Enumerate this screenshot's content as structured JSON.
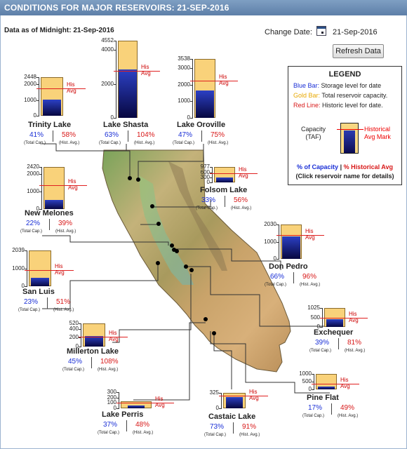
{
  "header": {
    "title": "CONDITIONS FOR MAJOR RESERVOIRS: 21-SEP-2016"
  },
  "as_of": "Data as of Midnight: 21-Sep-2016",
  "change_date": {
    "label": "Change Date:",
    "value": "21-Sep-2016",
    "button": "Refresh Data"
  },
  "legend": {
    "title": "LEGEND",
    "blue_label": "Blue Bar:",
    "blue_desc": "Storage level for date",
    "gold_label": "Gold Bar:",
    "gold_desc": "Total reservoir capacity.",
    "red_label": "Red Line:",
    "red_desc": "Historic level for date.",
    "capacity_label": "Capacity",
    "capacity_unit": "(TAF)",
    "hist_label_1": "Historical",
    "hist_label_2": "Avg Mark",
    "foot_cap": "% of Capacity",
    "foot_sep": " | ",
    "foot_hist": "% Historical Avg",
    "foot_note": "(Click reservoir name for details)",
    "colors": {
      "blue": "#1a2fd6",
      "gold": "#f0b400",
      "red": "#d81818"
    }
  },
  "sub_labels": {
    "cap": "(Total Cap.)",
    "hist": "(Hist. Avg.)",
    "his_avg": "His Avg"
  },
  "reservoirs": [
    {
      "name": "Trinity Lake",
      "pct_cap": "41%",
      "pct_hist": "58%",
      "ticks": [
        "2448",
        "2000",
        "1000",
        "0"
      ],
      "capacity": 2448,
      "storage": 1004,
      "hist": 1730
    },
    {
      "name": "Lake Shasta",
      "pct_cap": "63%",
      "pct_hist": "104%",
      "ticks": [
        "4552",
        "4000",
        "2000",
        "0"
      ],
      "capacity": 4552,
      "storage": 2868,
      "hist": 2760
    },
    {
      "name": "Lake Oroville",
      "pct_cap": "47%",
      "pct_hist": "75%",
      "ticks": [
        "3538",
        "3000",
        "2000",
        "1000",
        "0"
      ],
      "capacity": 3538,
      "storage": 1663,
      "hist": 2220
    },
    {
      "name": "Folsom Lake",
      "pct_cap": "33%",
      "pct_hist": "56%",
      "ticks": [
        "977",
        "600",
        "300",
        "0"
      ],
      "capacity": 977,
      "storage": 322,
      "hist": 575
    },
    {
      "name": "New Melones",
      "pct_cap": "22%",
      "pct_hist": "39%",
      "ticks": [
        "2420",
        "2000",
        "1000",
        "0"
      ],
      "capacity": 2420,
      "storage": 532,
      "hist": 1365
    },
    {
      "name": "Don Pedro",
      "pct_cap": "66%",
      "pct_hist": "96%",
      "ticks": [
        "2030",
        "1000",
        "0"
      ],
      "capacity": 2030,
      "storage": 1340,
      "hist": 1395
    },
    {
      "name": "San Luis",
      "pct_cap": "23%",
      "pct_hist": "51%",
      "ticks": [
        "2039",
        "1000",
        "0"
      ],
      "capacity": 2039,
      "storage": 469,
      "hist": 920
    },
    {
      "name": "Exchequer",
      "pct_cap": "39%",
      "pct_hist": "81%",
      "ticks": [
        "1025",
        "500",
        "0"
      ],
      "capacity": 1025,
      "storage": 400,
      "hist": 494
    },
    {
      "name": "Millerton Lake",
      "pct_cap": "45%",
      "pct_hist": "108%",
      "ticks": [
        "520",
        "400",
        "200",
        "0"
      ],
      "capacity": 520,
      "storage": 234,
      "hist": 217
    },
    {
      "name": "Pine Flat",
      "pct_cap": "17%",
      "pct_hist": "49%",
      "ticks": [
        "1000",
        "500",
        "0"
      ],
      "capacity": 1000,
      "storage": 170,
      "hist": 347
    },
    {
      "name": "Lake Perris",
      "pct_cap": "37%",
      "pct_hist": "48%",
      "ticks": [
        "300",
        "200",
        "100",
        "0"
      ],
      "capacity": 131,
      "storage": 48,
      "hist": 100
    },
    {
      "name": "Castaic Lake",
      "pct_cap": "73%",
      "pct_hist": "91%",
      "ticks": [
        "325",
        "0"
      ],
      "capacity": 325,
      "storage": 237,
      "hist": 260
    }
  ]
}
